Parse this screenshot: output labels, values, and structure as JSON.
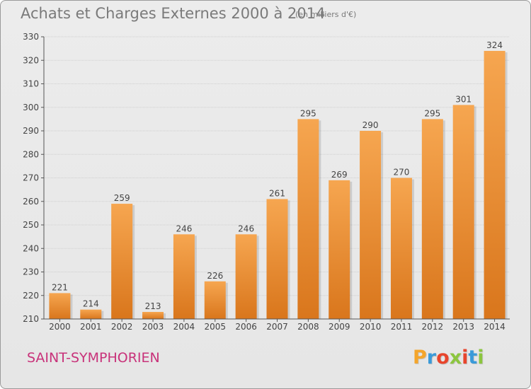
{
  "header": {
    "title": "Achats et Charges Externes 2000 à 2014",
    "unit": "(en milliers d'€)"
  },
  "footer": {
    "city": "SAINT-SYMPHORIEN",
    "logo_letters": [
      "P",
      "r",
      "o",
      "x",
      "i",
      "t",
      "i"
    ],
    "logo_colors": [
      "#f4a52b",
      "#3a9ad9",
      "#e8452c",
      "#8cc63f",
      "#e8452c",
      "#3a9ad9",
      "#8cc63f"
    ]
  },
  "colors": {
    "bar_top": "#f6a650",
    "bar_bottom": "#d9761c",
    "grid": "#cfcfcf",
    "axis": "#555555"
  },
  "chart_data": {
    "type": "bar",
    "title": "Achats et Charges Externes 2000 à 2014",
    "categories": [
      "2000",
      "2001",
      "2002",
      "2003",
      "2004",
      "2005",
      "2006",
      "2007",
      "2008",
      "2009",
      "2010",
      "2011",
      "2012",
      "2013",
      "2014"
    ],
    "values": [
      221,
      214,
      259,
      213,
      246,
      226,
      246,
      261,
      295,
      269,
      290,
      270,
      295,
      301,
      324
    ],
    "xlabel": "",
    "ylabel": "",
    "ylim": [
      210,
      330
    ],
    "yticks": [
      210,
      220,
      230,
      240,
      250,
      260,
      270,
      280,
      290,
      300,
      310,
      320,
      330
    ],
    "grid": true
  }
}
